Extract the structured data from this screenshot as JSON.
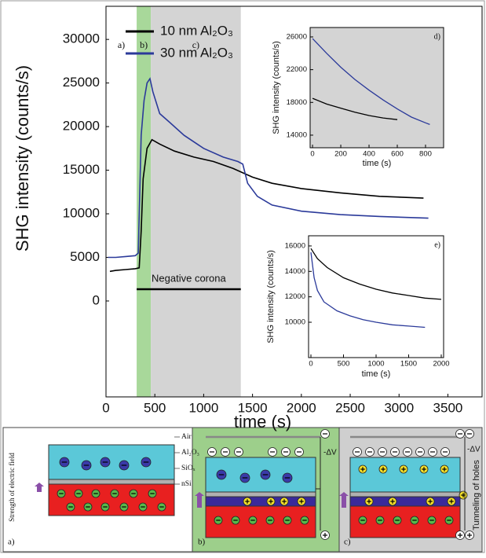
{
  "chart_data": [
    {
      "type": "line",
      "xlabel": "time (s)",
      "ylabel": "SHG intensity (counts/s)",
      "xlim": [
        0,
        3850
      ],
      "ylim": [
        -11000,
        33800
      ],
      "xticks": [
        0,
        500,
        1000,
        1500,
        2000,
        2500,
        3000,
        3500
      ],
      "yticks": [
        0,
        5000,
        10000,
        15000,
        20000,
        25000,
        30000
      ],
      "legend": "upper left",
      "phases": [
        {
          "label": "a)",
          "start": 0,
          "end": 314
        },
        {
          "label": "b)",
          "start": 314,
          "end": 459,
          "color": "#a8d89a"
        },
        {
          "label": "c)",
          "start": 459,
          "end": 1380,
          "color": "#d4d4d4"
        }
      ],
      "bar_annotation": {
        "text": "Negative corona",
        "start": 314,
        "end": 1380,
        "y": 1350
      },
      "series": [
        {
          "name": "10 nm Al₂O₃",
          "color": "#000000",
          "x": [
            40,
            100,
            200,
            300,
            340,
            360,
            380,
            420,
            470,
            550,
            700,
            900,
            1100,
            1300,
            1500,
            1700,
            2000,
            2400,
            2800,
            3250
          ],
          "values": [
            3400,
            3500,
            3600,
            3700,
            3800,
            8000,
            14000,
            17500,
            18500,
            18000,
            17200,
            16500,
            16000,
            15200,
            14200,
            13500,
            12900,
            12400,
            12000,
            11800
          ]
        },
        {
          "name": "30 nm Al₂O₃",
          "color": "#2b3a9a",
          "x": [
            20,
            100,
            200,
            300,
            330,
            345,
            360,
            390,
            420,
            450,
            480,
            550,
            650,
            800,
            1000,
            1200,
            1350,
            1400,
            1450,
            1550,
            1700,
            2000,
            2400,
            2800,
            3300
          ],
          "values": [
            5000,
            5000,
            5100,
            5200,
            5500,
            12000,
            19000,
            23000,
            25000,
            25500,
            24000,
            21500,
            20500,
            19000,
            17500,
            16500,
            16000,
            15700,
            13500,
            12000,
            11000,
            10300,
            9900,
            9700,
            9500
          ]
        }
      ]
    },
    {
      "type": "line",
      "label": "d)",
      "xlabel": "time (s)",
      "ylabel": "SHG intensity (counts/s)",
      "background": "#d4d4d4",
      "xlim": [
        -17,
        928
      ],
      "ylim": [
        12460,
        27150
      ],
      "xticks": [
        0,
        200,
        400,
        600,
        800
      ],
      "yticks": [
        14000,
        18000,
        22000,
        26000
      ],
      "series": [
        {
          "color": "#000000",
          "x": [
            0,
            100,
            200,
            300,
            400,
            500,
            600
          ],
          "values": [
            18500,
            17800,
            17300,
            16800,
            16400,
            16100,
            15900
          ]
        },
        {
          "color": "#2b3a9a",
          "x": [
            0,
            100,
            200,
            300,
            400,
            500,
            600,
            700,
            800,
            830
          ],
          "values": [
            25800,
            24000,
            22300,
            20800,
            19500,
            18300,
            17200,
            16200,
            15500,
            15300
          ]
        }
      ]
    },
    {
      "type": "line",
      "label": "e)",
      "xlabel": "time (s)",
      "ylabel": "SHG intensity (counts/s)",
      "xlim": [
        -36,
        2036
      ],
      "ylim": [
        7220,
        16800
      ],
      "xticks": [
        0,
        500,
        1000,
        1500,
        2000
      ],
      "yticks": [
        10000,
        12000,
        14000,
        16000
      ],
      "series": [
        {
          "color": "#000000",
          "x": [
            0,
            100,
            250,
            500,
            750,
            1000,
            1250,
            1500,
            1750,
            2000
          ],
          "values": [
            15800,
            15000,
            14300,
            13500,
            13000,
            12600,
            12300,
            12100,
            11900,
            11800
          ]
        },
        {
          "color": "#2b3a9a",
          "x": [
            0,
            50,
            100,
            200,
            400,
            600,
            800,
            1000,
            1250,
            1500,
            1750
          ],
          "values": [
            15500,
            13500,
            12500,
            11600,
            10900,
            10500,
            10200,
            10000,
            9800,
            9700,
            9600
          ]
        }
      ]
    }
  ],
  "diagram": {
    "layers": [
      "Air",
      "Al₂O₃",
      "SiOₓ",
      "nSi"
    ],
    "field_label": "Strength of electric field",
    "voltage_label": "-ΔV",
    "tunneling_label": "Tunneling of holes",
    "panels": [
      "a)",
      "b)",
      "c)"
    ]
  }
}
